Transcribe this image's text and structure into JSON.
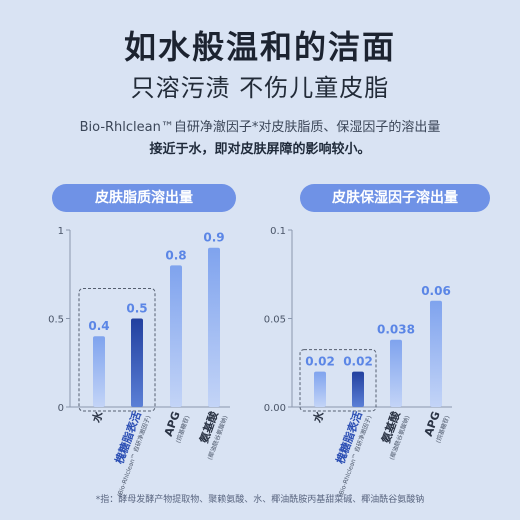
{
  "header": {
    "title": "如水般温和的洁面",
    "subtitle": "只溶污渍 不伤儿童皮脂",
    "desc_line1": "Bio-Rhlclean™自研净澈因子*对皮肤脂质、保湿因子的溶出量",
    "desc_line2": "接近于水，即对皮肤屏障的影响较小。"
  },
  "colors": {
    "bar_light": "#8fb0f0",
    "bar_dark": "#2c4fb4",
    "pill": "#6f92e6",
    "label": "#5b86e6"
  },
  "chart_data": [
    {
      "type": "bar",
      "title": "皮肤脂质溶出量",
      "ylim": [
        0,
        1
      ],
      "yticks": [
        "0",
        "0.5",
        "1"
      ],
      "categories": [
        {
          "name": "水",
          "sub": ""
        },
        {
          "name": "槐糖脂表活",
          "sub": "(Bio-Rhlclean™ 自研净澈因子)"
        },
        {
          "name": "APG",
          "sub": "(烷基糖苷)"
        },
        {
          "name": "氨基酸",
          "sub": "(椰油酰谷氨酸钠)"
        }
      ],
      "values": [
        0.4,
        0.5,
        0.8,
        0.9
      ],
      "highlight": [
        0,
        1
      ]
    },
    {
      "type": "bar",
      "title": "皮肤保湿因子溶出量",
      "ylim": [
        0,
        0.1
      ],
      "yticks": [
        "0.00",
        "0.05",
        "0.1"
      ],
      "categories": [
        {
          "name": "水",
          "sub": ""
        },
        {
          "name": "槐糖脂表活",
          "sub": "(Bio-Rhlclean™ 自研净澈因子)"
        },
        {
          "name": "氨基酸",
          "sub": "(椰油酰谷氨酸钠)"
        },
        {
          "name": "APG",
          "sub": "(烷基糖苷)"
        }
      ],
      "values": [
        0.02,
        0.02,
        0.038,
        0.06
      ],
      "highlight": [
        0,
        1
      ]
    }
  ],
  "footnote": "*指：酵母发酵产物提取物、聚赖氨酸、水、椰油酰胺丙基甜菜碱、椰油酰谷氨酸钠"
}
